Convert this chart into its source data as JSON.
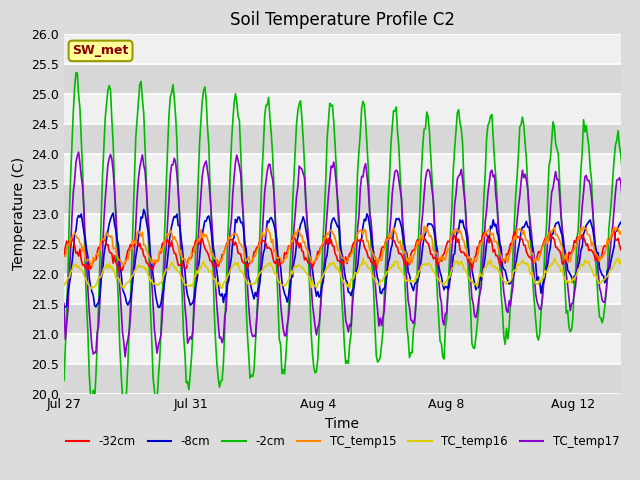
{
  "title": "Soil Temperature Profile C2",
  "xlabel": "Time",
  "ylabel": "Temperature (C)",
  "ylim": [
    20.0,
    26.0
  ],
  "yticks": [
    20.0,
    20.5,
    21.0,
    21.5,
    22.0,
    22.5,
    23.0,
    23.5,
    24.0,
    24.5,
    25.0,
    25.5,
    26.0
  ],
  "date_ticks": [
    "Jul 27",
    "Jul 31",
    "Aug 4",
    "Aug 8",
    "Aug 12"
  ],
  "date_tick_positions": [
    0,
    4,
    8,
    12,
    16
  ],
  "annotation_text": "SW_met",
  "annotation_color": "#8B0000",
  "annotation_bg": "#FFFF99",
  "annotation_border": "#999900",
  "fig_bg": "#DCDCDC",
  "plot_bg": "#DCDCDC",
  "grid_color": "white",
  "series": {
    "neg32cm": {
      "label": "-32cm",
      "color": "#FF0000",
      "lw": 1.2
    },
    "neg8cm": {
      "label": "-8cm",
      "color": "#0000CC",
      "lw": 1.2
    },
    "neg2cm": {
      "label": "-2cm",
      "color": "#00BB00",
      "lw": 1.2
    },
    "tc15": {
      "label": "TC_temp15",
      "color": "#FF8800",
      "lw": 1.2
    },
    "tc16": {
      "label": "TC_temp16",
      "color": "#DDCC00",
      "lw": 1.2
    },
    "tc17": {
      "label": "TC_temp17",
      "color": "#8800CC",
      "lw": 1.2
    }
  }
}
